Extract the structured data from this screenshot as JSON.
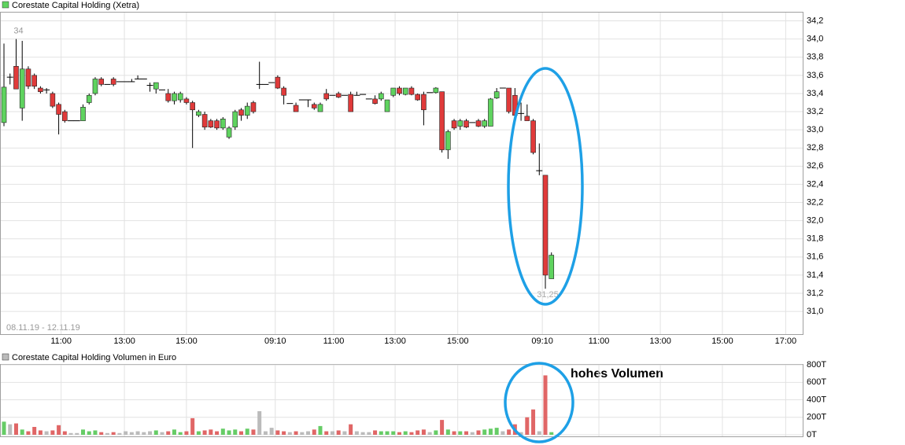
{
  "chart_data": [
    {
      "type": "candlestick",
      "title": "Corestate Capital Holding (Xetra)",
      "date_range": "08.11.19 - 12.11.19",
      "max_label": "34",
      "min_label": "31,25",
      "up_color": "#5fd35f",
      "down_color": "#e03a3a",
      "flat_color": "#000000",
      "grid": true,
      "x": [
        0,
        1,
        2,
        3,
        4,
        5,
        6,
        7,
        8,
        9,
        10,
        11,
        12,
        13,
        14,
        15,
        16,
        17,
        18,
        19,
        20,
        21,
        22,
        23,
        24,
        25,
        26,
        27,
        28,
        29,
        30,
        31,
        32,
        33,
        34,
        35,
        36,
        37,
        38,
        39,
        40,
        41,
        42,
        43,
        44,
        45,
        46,
        47,
        48,
        49,
        50,
        51,
        52,
        53,
        54,
        55,
        56,
        57,
        58,
        59,
        60,
        61,
        62,
        63,
        64,
        65,
        66,
        67,
        68,
        69,
        70,
        71,
        72,
        73,
        74,
        75,
        76,
        77,
        78,
        79,
        80,
        81,
        82,
        83,
        84,
        85,
        86,
        87,
        88,
        89,
        90
      ],
      "open": [
        33.08,
        33.58,
        33.7,
        33.24,
        33.67,
        33.6,
        33.46,
        33.44,
        33.4,
        33.28,
        33.2,
        33.1,
        33.1,
        33.1,
        33.3,
        33.4,
        33.56,
        33.5,
        33.56,
        33.53,
        33.53,
        33.53,
        33.56,
        33.56,
        33.49,
        33.45,
        33.44,
        33.4,
        33.32,
        33.33,
        33.34,
        33.3,
        33.16,
        33.17,
        33.1,
        33.1,
        33.02,
        32.92,
        33.03,
        33.22,
        33.16,
        33.3,
        33.5,
        33.5,
        33.52,
        33.58,
        33.46,
        33.29,
        33.27,
        33.33,
        33.33,
        33.28,
        33.2,
        33.4,
        33.38,
        33.4,
        33.38,
        33.39,
        33.38,
        33.39,
        33.34,
        33.34,
        33.34,
        33.2,
        33.38,
        33.46,
        33.39,
        33.46,
        33.39,
        33.39,
        33.41,
        33.41,
        33.42,
        32.78,
        33.1,
        33.04,
        33.1,
        33.08,
        33.1,
        33.04,
        33.04,
        33.35,
        33.46,
        33.46,
        33.38,
        33.18,
        33.15,
        33.1,
        32.55,
        32.5,
        31.36
      ],
      "high": [
        33.95,
        33.62,
        34.0,
        33.98,
        33.7,
        33.62,
        33.48,
        33.46,
        33.42,
        33.3,
        33.22,
        33.1,
        33.1,
        33.28,
        33.4,
        33.58,
        33.58,
        33.5,
        33.58,
        33.53,
        33.53,
        33.56,
        33.6,
        33.56,
        33.52,
        33.52,
        33.44,
        33.45,
        33.42,
        33.42,
        33.36,
        33.32,
        33.22,
        33.2,
        33.12,
        33.12,
        33.14,
        33.04,
        33.22,
        33.24,
        33.3,
        33.32,
        33.75,
        33.5,
        33.52,
        33.6,
        33.48,
        33.29,
        33.3,
        33.33,
        33.33,
        33.3,
        33.3,
        33.45,
        33.38,
        33.42,
        33.38,
        33.42,
        33.42,
        33.39,
        33.34,
        33.38,
        33.42,
        33.3,
        33.46,
        33.48,
        33.46,
        33.48,
        33.4,
        33.42,
        33.41,
        33.47,
        33.42,
        33.0,
        33.12,
        33.12,
        33.12,
        33.08,
        33.12,
        33.12,
        33.35,
        33.46,
        33.46,
        33.46,
        33.46,
        33.3,
        33.28,
        33.12,
        32.85,
        32.5,
        31.65
      ],
      "low": [
        33.04,
        33.5,
        33.45,
        33.1,
        33.45,
        33.45,
        33.4,
        33.4,
        33.24,
        32.95,
        33.08,
        33.1,
        33.1,
        33.1,
        33.28,
        33.38,
        33.48,
        33.5,
        33.48,
        33.53,
        33.53,
        33.53,
        33.56,
        33.56,
        33.42,
        33.4,
        33.44,
        33.3,
        33.28,
        33.3,
        33.28,
        32.8,
        33.14,
        33.0,
        33.02,
        33.0,
        33.0,
        32.9,
        33.0,
        33.1,
        33.12,
        33.18,
        33.45,
        33.5,
        33.52,
        33.45,
        33.28,
        33.29,
        33.2,
        33.33,
        33.25,
        33.22,
        33.2,
        33.32,
        33.38,
        33.35,
        33.38,
        33.2,
        33.38,
        33.39,
        33.34,
        33.28,
        33.32,
        33.2,
        33.36,
        33.38,
        33.38,
        33.38,
        33.32,
        33.05,
        33.41,
        33.4,
        32.75,
        32.68,
        33.0,
        33.0,
        33.02,
        33.08,
        33.03,
        33.02,
        33.04,
        33.34,
        33.46,
        33.18,
        33.15,
        33.1,
        33.1,
        32.73,
        32.5,
        31.25,
        31.36
      ],
      "close": [
        33.47,
        33.58,
        33.45,
        33.67,
        33.48,
        33.48,
        33.42,
        33.44,
        33.26,
        33.17,
        33.1,
        33.1,
        33.1,
        33.25,
        33.38,
        33.56,
        33.5,
        33.5,
        33.5,
        33.53,
        33.53,
        33.53,
        33.56,
        33.56,
        33.49,
        33.52,
        33.44,
        33.32,
        33.4,
        33.4,
        33.3,
        33.22,
        33.2,
        33.03,
        33.03,
        33.02,
        33.12,
        33.02,
        33.2,
        33.16,
        33.26,
        33.2,
        33.5,
        33.5,
        33.52,
        33.46,
        33.38,
        33.29,
        33.2,
        33.33,
        33.33,
        33.24,
        33.28,
        33.34,
        33.38,
        33.36,
        33.38,
        33.2,
        33.38,
        33.39,
        33.34,
        33.29,
        33.4,
        33.33,
        33.46,
        33.4,
        33.46,
        33.39,
        33.33,
        33.22,
        33.41,
        33.46,
        32.78,
        32.98,
        33.02,
        33.1,
        33.03,
        33.08,
        33.04,
        33.1,
        33.34,
        33.42,
        33.46,
        33.2,
        33.16,
        33.18,
        33.1,
        32.75,
        32.55,
        31.4,
        31.62
      ],
      "xlim": [
        -0.65,
        131.3
      ],
      "xticks": [
        {
          "value": 9.4,
          "label": "11:00"
        },
        {
          "value": 19.8,
          "label": "13:00"
        },
        {
          "value": 30.0,
          "label": "15:00"
        },
        {
          "value": 44.6,
          "label": "09:10"
        },
        {
          "value": 54.2,
          "label": "11:00"
        },
        {
          "value": 64.3,
          "label": "13:00"
        },
        {
          "value": 74.6,
          "label": "15:00"
        },
        {
          "value": 88.5,
          "label": "09:10"
        },
        {
          "value": 97.8,
          "label": "11:00"
        },
        {
          "value": 107.9,
          "label": "13:00"
        },
        {
          "value": 118.1,
          "label": "15:00"
        },
        {
          "value": 128.5,
          "label": "17:00"
        }
      ],
      "ylim": [
        30.75,
        34.3
      ],
      "yticks": [
        {
          "value": 34.2,
          "label": "34,2"
        },
        {
          "value": 34.0,
          "label": "34,0"
        },
        {
          "value": 33.8,
          "label": "33,8"
        },
        {
          "value": 33.6,
          "label": "33,6"
        },
        {
          "value": 33.4,
          "label": "33,4"
        },
        {
          "value": 33.2,
          "label": "33,2"
        },
        {
          "value": 33.0,
          "label": "33,0"
        },
        {
          "value": 32.8,
          "label": "32,8"
        },
        {
          "value": 32.6,
          "label": "32,6"
        },
        {
          "value": 32.4,
          "label": "32,4"
        },
        {
          "value": 32.2,
          "label": "32,2"
        },
        {
          "value": 32.0,
          "label": "32,0"
        },
        {
          "value": 31.8,
          "label": "31,8"
        },
        {
          "value": 31.6,
          "label": "31,6"
        },
        {
          "value": 31.4,
          "label": "31,4"
        },
        {
          "value": 31.2,
          "label": "31,2"
        },
        {
          "value": 31.0,
          "label": "31,0"
        }
      ]
    },
    {
      "type": "bar",
      "title": "Corestate Capital Holding Volumen in Euro",
      "annotation": "hohes Volumen",
      "up_color": "#66cc66",
      "down_color": "#e06666",
      "flat_color": "#bbbbbb",
      "grid": true,
      "x": [
        0,
        1,
        2,
        3,
        4,
        5,
        6,
        7,
        8,
        9,
        10,
        11,
        12,
        13,
        14,
        15,
        16,
        17,
        18,
        19,
        20,
        21,
        22,
        23,
        24,
        25,
        26,
        27,
        28,
        29,
        30,
        31,
        32,
        33,
        34,
        35,
        36,
        37,
        38,
        39,
        40,
        41,
        42,
        43,
        44,
        45,
        46,
        47,
        48,
        49,
        50,
        51,
        52,
        53,
        54,
        55,
        56,
        57,
        58,
        59,
        60,
        61,
        62,
        63,
        64,
        65,
        66,
        67,
        68,
        69,
        70,
        71,
        72,
        73,
        74,
        75,
        76,
        77,
        78,
        79,
        80,
        81,
        82,
        83,
        84,
        85,
        86,
        87,
        88,
        89,
        90
      ],
      "values": [
        150000,
        120000,
        130000,
        60000,
        40000,
        90000,
        50000,
        40000,
        50000,
        110000,
        40000,
        20000,
        20000,
        60000,
        40000,
        50000,
        30000,
        20000,
        30000,
        20000,
        40000,
        30000,
        40000,
        30000,
        40000,
        50000,
        30000,
        40000,
        60000,
        30000,
        40000,
        190000,
        40000,
        50000,
        60000,
        40000,
        70000,
        50000,
        60000,
        40000,
        70000,
        60000,
        270000,
        40000,
        80000,
        50000,
        40000,
        30000,
        40000,
        30000,
        40000,
        60000,
        100000,
        40000,
        40000,
        50000,
        40000,
        120000,
        40000,
        30000,
        30000,
        50000,
        40000,
        40000,
        40000,
        30000,
        40000,
        30000,
        50000,
        60000,
        30000,
        50000,
        170000,
        60000,
        40000,
        40000,
        40000,
        30000,
        50000,
        60000,
        70000,
        80000,
        40000,
        60000,
        120000,
        30000,
        200000,
        290000,
        40000,
        680000,
        30000
      ],
      "xlim": [
        -0.65,
        131.3
      ],
      "ylim": [
        0,
        810000
      ],
      "yticks": [
        {
          "value": 0,
          "label": "0T"
        },
        {
          "value": 200000,
          "label": "200T"
        },
        {
          "value": 400000,
          "label": "400T"
        },
        {
          "value": 600000,
          "label": "600T"
        },
        {
          "value": 800000,
          "label": "800T"
        }
      ]
    }
  ]
}
